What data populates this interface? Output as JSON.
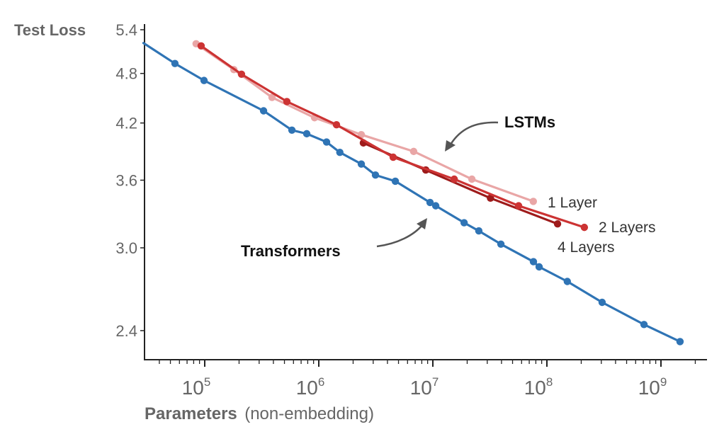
{
  "chart_data": {
    "type": "line",
    "title": "",
    "ylabel": "Test Loss",
    "xlabel_bold": "Parameters",
    "xlabel_normal": "(non-embedding)",
    "xscale": "log",
    "yscale": "log",
    "xlim": [
      29000,
      2500000000
    ],
    "ylim": [
      2.2,
      5.5
    ],
    "yticks": [
      5.4,
      4.8,
      4.2,
      3.6,
      3.0,
      2.4
    ],
    "ytick_labels": [
      "5.4",
      "4.8",
      "4.2",
      "3.6",
      "3.0",
      "2.4"
    ],
    "xticks": [
      100000,
      1000000,
      10000000,
      100000000,
      1000000000
    ],
    "xtick_labels": [
      {
        "base": "10",
        "exp": "5"
      },
      {
        "base": "10",
        "exp": "6"
      },
      {
        "base": "10",
        "exp": "7"
      },
      {
        "base": "10",
        "exp": "8"
      },
      {
        "base": "10",
        "exp": "9"
      }
    ],
    "grid": false,
    "series": [
      {
        "name": "Transformers",
        "color": "#2f74b5",
        "line_start": {
          "x": 29000,
          "y": 5.21
        },
        "points": [
          {
            "x": 54800,
            "y": 4.93
          },
          {
            "x": 98600,
            "y": 4.71
          },
          {
            "x": 328000,
            "y": 4.34
          },
          {
            "x": 581000,
            "y": 4.12
          },
          {
            "x": 784000,
            "y": 4.08
          },
          {
            "x": 1170000,
            "y": 3.99
          },
          {
            "x": 1530000,
            "y": 3.88
          },
          {
            "x": 2360000,
            "y": 3.76
          },
          {
            "x": 3140000,
            "y": 3.65
          },
          {
            "x": 4690000,
            "y": 3.59
          },
          {
            "x": 9450000,
            "y": 3.39
          },
          {
            "x": 10600000,
            "y": 3.36
          },
          {
            "x": 18800000,
            "y": 3.21
          },
          {
            "x": 25300000,
            "y": 3.14
          },
          {
            "x": 39500000,
            "y": 3.03
          },
          {
            "x": 76200000,
            "y": 2.89
          },
          {
            "x": 85500000,
            "y": 2.85
          },
          {
            "x": 151000000,
            "y": 2.74
          },
          {
            "x": 305000000,
            "y": 2.59
          },
          {
            "x": 710000000,
            "y": 2.44
          },
          {
            "x": 1470000000,
            "y": 2.33
          }
        ]
      },
      {
        "name": "1 Layer",
        "color": "#e9a6a6",
        "points": [
          {
            "x": 84000,
            "y": 5.2
          },
          {
            "x": 180000,
            "y": 4.85
          },
          {
            "x": 389000,
            "y": 4.5
          },
          {
            "x": 918000,
            "y": 4.26
          },
          {
            "x": 2360000,
            "y": 4.07
          },
          {
            "x": 6790000,
            "y": 3.89
          },
          {
            "x": 22000000,
            "y": 3.61
          },
          {
            "x": 76000000,
            "y": 3.4
          }
        ]
      },
      {
        "name": "2 Layers",
        "color": "#cc3333",
        "points": [
          {
            "x": 93000,
            "y": 5.17
          },
          {
            "x": 210000,
            "y": 4.79
          },
          {
            "x": 525000,
            "y": 4.45
          },
          {
            "x": 1430000,
            "y": 4.18
          },
          {
            "x": 4490000,
            "y": 3.83
          },
          {
            "x": 15400000,
            "y": 3.61
          },
          {
            "x": 56500000,
            "y": 3.36
          },
          {
            "x": 213000000,
            "y": 3.17
          }
        ]
      },
      {
        "name": "4 Layers",
        "color": "#9e1b1b",
        "points": [
          {
            "x": 2460000,
            "y": 3.98
          },
          {
            "x": 8670000,
            "y": 3.7
          },
          {
            "x": 32000000,
            "y": 3.43
          },
          {
            "x": 124000000,
            "y": 3.2
          }
        ]
      }
    ],
    "annotations": [
      {
        "text": "LSTMs",
        "style": "bold",
        "points_to": "LSTM curves"
      },
      {
        "text": "Transformers",
        "style": "bold",
        "points_to": "Transformers curve"
      }
    ],
    "series_labels": [
      "1 Layer",
      "2 Layers",
      "4 Layers"
    ]
  }
}
